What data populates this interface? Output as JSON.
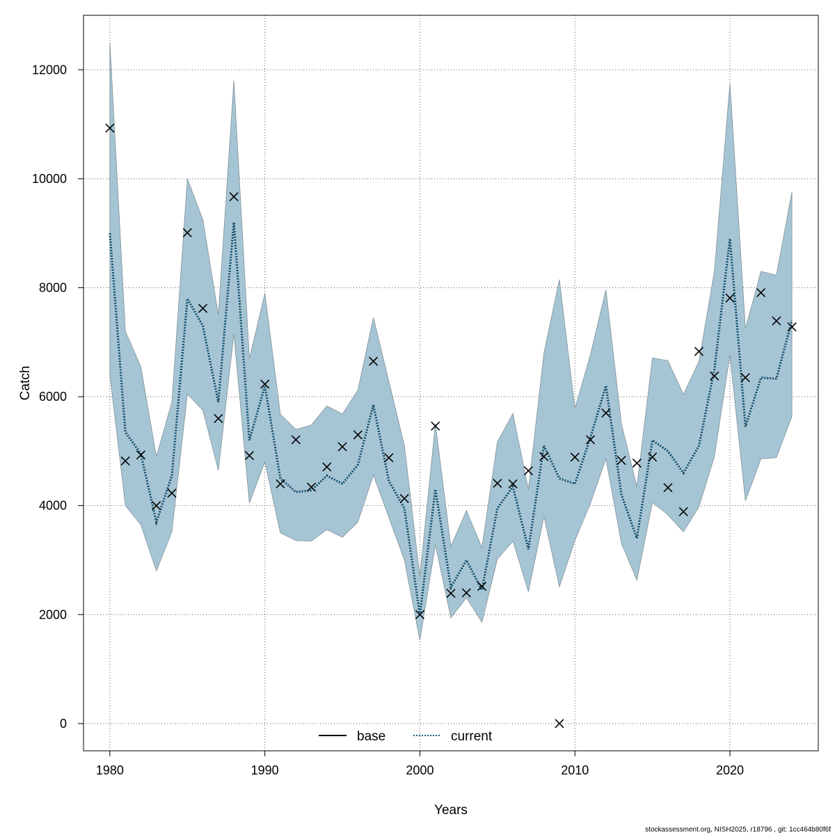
{
  "chart_data": {
    "type": "line",
    "xlabel": "Years",
    "ylabel": "Catch",
    "xlim": [
      1978.3,
      2025.7
    ],
    "ylim": [
      -500,
      13000
    ],
    "x_ticks": [
      1980,
      1990,
      2000,
      2010,
      2020
    ],
    "y_ticks": [
      0,
      2000,
      4000,
      6000,
      8000,
      10000,
      12000
    ],
    "grid": true,
    "legend_position": "bottom-center",
    "legend": [
      {
        "name": "base",
        "style": "solid",
        "color": "#000000"
      },
      {
        "name": "current",
        "style": "dotted",
        "color": "#0b5d86"
      }
    ],
    "colors": {
      "band": "#a6c5d4",
      "band_edge": "#7f8f97",
      "current": "#0b5d86",
      "base": "#000000"
    },
    "years": [
      1980,
      1981,
      1982,
      1983,
      1984,
      1985,
      1986,
      1987,
      1988,
      1989,
      1990,
      1991,
      1992,
      1993,
      1994,
      1995,
      1996,
      1997,
      1998,
      1999,
      2000,
      2001,
      2002,
      2003,
      2004,
      2005,
      2006,
      2007,
      2008,
      2009,
      2010,
      2011,
      2012,
      2013,
      2014,
      2015,
      2016,
      2017,
      2018,
      2019,
      2020,
      2021,
      2022,
      2023,
      2024
    ],
    "series": [
      {
        "name": "current",
        "values": [
          9000,
          5350,
          4950,
          3700,
          4550,
          7800,
          7300,
          5900,
          9200,
          5200,
          6200,
          4500,
          4250,
          4280,
          4550,
          4400,
          4750,
          5850,
          4450,
          3950,
          2000,
          4300,
          2500,
          3000,
          2450,
          3950,
          4350,
          3200,
          5100,
          4500,
          4400,
          5250,
          6200,
          4200,
          3400,
          5200,
          5000,
          4600,
          5100,
          6500,
          8900,
          5450,
          6350,
          6330,
          7400
        ],
        "lower": [
          6400,
          4000,
          3650,
          2800,
          3520,
          6050,
          5750,
          4650,
          7150,
          4050,
          4800,
          3500,
          3360,
          3350,
          3560,
          3420,
          3700,
          4560,
          3780,
          3000,
          1530,
          3280,
          1940,
          2310,
          1860,
          3020,
          3350,
          2420,
          3800,
          2510,
          3360,
          4040,
          4860,
          3310,
          2630,
          4060,
          3830,
          3520,
          3980,
          4900,
          6760,
          4090,
          4860,
          4880,
          5640
        ],
        "upper": [
          12500,
          7200,
          6550,
          4900,
          5900,
          10000,
          9250,
          7500,
          11800,
          6700,
          7900,
          5680,
          5400,
          5480,
          5830,
          5680,
          6120,
          7450,
          6280,
          5100,
          2700,
          5500,
          3250,
          3910,
          3230,
          5170,
          5690,
          4300,
          6800,
          8150,
          5780,
          6770,
          7960,
          5500,
          4350,
          6710,
          6660,
          6040,
          6650,
          8300,
          11750,
          7250,
          8300,
          8230,
          9760
        ]
      },
      {
        "name": "base",
        "values": []
      }
    ],
    "observations": {
      "marker": "x",
      "values": [
        10930,
        4820,
        4930,
        4000,
        4230,
        9010,
        7620,
        5600,
        9670,
        4920,
        6230,
        4400,
        5210,
        4340,
        4710,
        5080,
        5300,
        6650,
        4880,
        4130,
        2000,
        5460,
        2390,
        2400,
        2520,
        4410,
        4400,
        4640,
        4900,
        0,
        4890,
        5210,
        5700,
        4830,
        4780,
        4890,
        4330,
        3890,
        6830,
        6380,
        7810,
        6350,
        7910,
        7390,
        7280
      ]
    }
  },
  "footer": "stockassessment.org, NISH2025, r18796 , git: 1cc464b80f6f"
}
